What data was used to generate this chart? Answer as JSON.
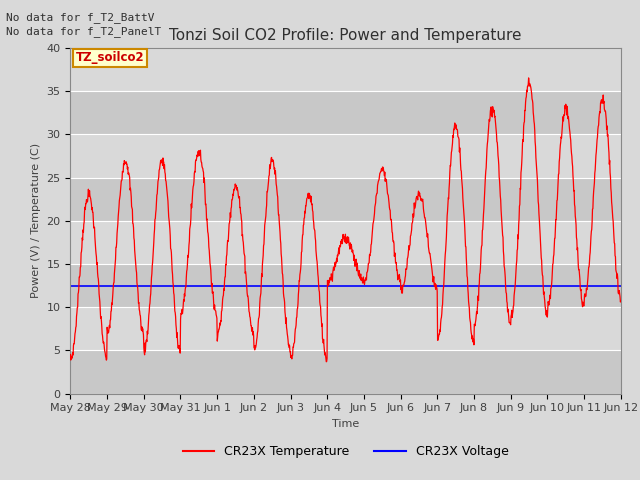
{
  "title": "Tonzi Soil CO2 Profile: Power and Temperature",
  "ylabel": "Power (V) / Temperature (C)",
  "xlabel": "Time",
  "ylim": [
    0,
    40
  ],
  "yticks": [
    0,
    5,
    10,
    15,
    20,
    25,
    30,
    35,
    40
  ],
  "date_labels": [
    "May 28",
    "May 29",
    "May 30",
    "May 31",
    "Jun 1",
    "Jun 2",
    "Jun 3",
    "Jun 4",
    "Jun 5",
    "Jun 6",
    "Jun 7",
    "Jun 8",
    "Jun 9",
    "Jun 10",
    "Jun 11",
    "Jun 12"
  ],
  "annotations": [
    "No data for f_T2_BattV",
    "No data for f_T2_PanelT"
  ],
  "legend_label_box": "TZ_soilco2",
  "legend_temp": "CR23X Temperature",
  "legend_volt": "CR23X Voltage",
  "temp_color": "#ff0000",
  "volt_color": "#0000ff",
  "volt_value": 12.5,
  "background_color": "#d9d9d9",
  "plot_bg_color": "#d9d9d9",
  "title_fontsize": 11,
  "label_fontsize": 8,
  "tick_fontsize": 8,
  "annot_fontsize": 8
}
